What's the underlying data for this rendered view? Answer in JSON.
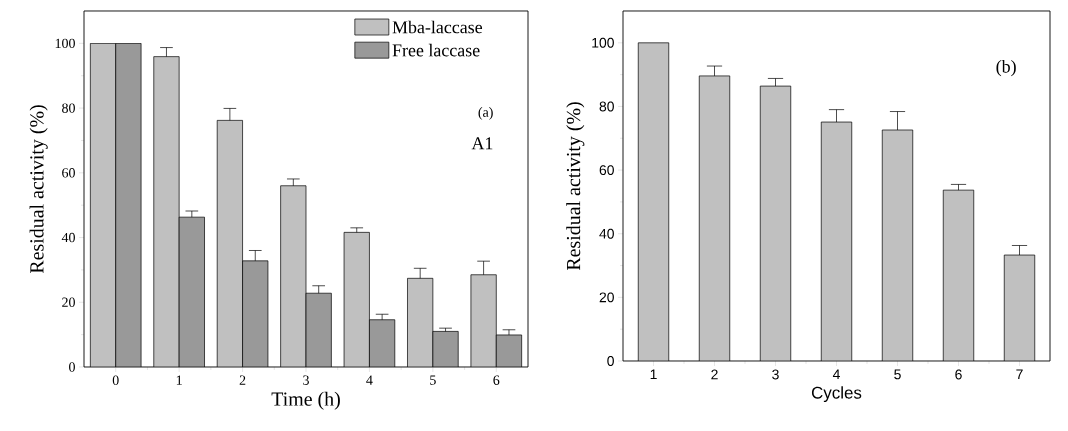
{
  "chart_data": [
    {
      "type": "bar",
      "xlabel": "Time (h)",
      "ylabel": "Residual activity (%)",
      "categories": [
        "0",
        "1",
        "2",
        "3",
        "4",
        "5",
        "6"
      ],
      "series": [
        {
          "name": "Mba-laccase",
          "color": "#c0c0c0",
          "values": [
            100,
            95.9,
            76.2,
            56,
            41.6,
            27.4,
            28.5
          ],
          "errors": [
            null,
            [
              95.9,
              98.7
            ],
            [
              76.2,
              79.9
            ],
            [
              56,
              58.1
            ],
            [
              41.6,
              43
            ],
            [
              27.4,
              30.5
            ],
            [
              28.5,
              32.7
            ]
          ]
        },
        {
          "name": "Free laccase",
          "color": "#999999",
          "values": [
            100,
            46.3,
            32.8,
            22.8,
            14.6,
            11,
            9.9
          ],
          "errors": [
            null,
            [
              46.3,
              48.2
            ],
            [
              32.8,
              36
            ],
            [
              22.8,
              25.1
            ],
            [
              14.6,
              16.3
            ],
            [
              11,
              12
            ],
            [
              9.9,
              11.5
            ]
          ]
        }
      ],
      "ylim": [
        0,
        110
      ],
      "yticks": [
        0,
        20,
        40,
        60,
        80,
        100
      ],
      "grid": false,
      "legend": "top right",
      "annotations": [
        "(a)",
        "A1"
      ]
    },
    {
      "type": "bar",
      "xlabel": "Cycles",
      "ylabel": "Residual activity (%)",
      "categories": [
        "1",
        "2",
        "3",
        "4",
        "5",
        "6",
        "7"
      ],
      "series": [
        {
          "color": "#c0c0c0",
          "values": [
            100,
            89.6,
            86.4,
            75.1,
            72.6,
            53.7,
            33.3
          ],
          "errors": [
            null,
            [
              89.6,
              92.7
            ],
            [
              86.4,
              88.8
            ],
            [
              75.1,
              79
            ],
            [
              72.6,
              78.4
            ],
            [
              53.7,
              55.5
            ],
            [
              33.3,
              36.3
            ]
          ]
        }
      ],
      "ylim": [
        0,
        110
      ],
      "yticks": [
        0,
        20,
        40,
        60,
        80,
        100
      ],
      "grid": false,
      "legend": false,
      "annotations": [
        "(b)"
      ]
    }
  ]
}
